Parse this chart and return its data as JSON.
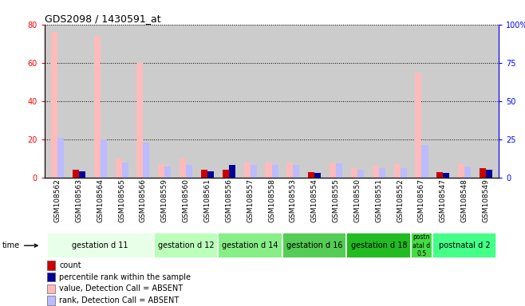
{
  "title": "GDS2098 / 1430591_at",
  "samples": [
    "GSM108562",
    "GSM108563",
    "GSM108564",
    "GSM108565",
    "GSM108566",
    "GSM108559",
    "GSM108560",
    "GSM108561",
    "GSM108556",
    "GSM108557",
    "GSM108558",
    "GSM108553",
    "GSM108554",
    "GSM108555",
    "GSM108550",
    "GSM108551",
    "GSM108552",
    "GSM108567",
    "GSM108547",
    "GSM108548",
    "GSM108549"
  ],
  "count_values": [
    76,
    4,
    74,
    10,
    60,
    7,
    10,
    4,
    4,
    8,
    8,
    8,
    3,
    8,
    5,
    6,
    7,
    55,
    3,
    7,
    5
  ],
  "rank_values": [
    26,
    4,
    25,
    10,
    23,
    7,
    8,
    4,
    8,
    8,
    8,
    8,
    3,
    9,
    5,
    6,
    6,
    21,
    3,
    7,
    5
  ],
  "absent_count": [
    76,
    0,
    74,
    10,
    60,
    7,
    10,
    0,
    0,
    8,
    8,
    8,
    0,
    8,
    5,
    6,
    7,
    55,
    0,
    7,
    0
  ],
  "absent_rank": [
    26,
    0,
    25,
    10,
    23,
    7,
    8,
    0,
    0,
    8,
    8,
    8,
    0,
    9,
    5,
    6,
    6,
    21,
    0,
    7,
    0
  ],
  "groups": [
    {
      "label": "gestation d 11",
      "start": 0,
      "end": 5,
      "color": "#e8ffe8"
    },
    {
      "label": "gestation d 12",
      "start": 5,
      "end": 8,
      "color": "#bbffbb"
    },
    {
      "label": "gestation d 14",
      "start": 8,
      "end": 11,
      "color": "#88ee88"
    },
    {
      "label": "gestation d 16",
      "start": 11,
      "end": 14,
      "color": "#55cc55"
    },
    {
      "label": "gestation d 18",
      "start": 14,
      "end": 17,
      "color": "#22bb22"
    },
    {
      "label": "postn\natal d\n0.5",
      "start": 17,
      "end": 18,
      "color": "#44dd44"
    },
    {
      "label": "postnatal d 2",
      "start": 18,
      "end": 21,
      "color": "#44ff88"
    }
  ],
  "left_ylim": [
    0,
    80
  ],
  "right_ylim": [
    0,
    100
  ],
  "left_yticks": [
    0,
    20,
    40,
    60,
    80
  ],
  "right_yticks": [
    0,
    25,
    50,
    75,
    100
  ],
  "right_yticklabels": [
    "0",
    "25",
    "50",
    "75",
    "100%"
  ],
  "bar_width": 0.3,
  "count_color": "#cc0000",
  "rank_color": "#000099",
  "absent_count_color": "#ffbbbb",
  "absent_rank_color": "#bbbbff",
  "plot_bg_color": "#cccccc",
  "legend_items": [
    {
      "label": "count",
      "color": "#cc0000"
    },
    {
      "label": "percentile rank within the sample",
      "color": "#000099"
    },
    {
      "label": "value, Detection Call = ABSENT",
      "color": "#ffbbbb"
    },
    {
      "label": "rank, Detection Call = ABSENT",
      "color": "#bbbbff"
    }
  ]
}
